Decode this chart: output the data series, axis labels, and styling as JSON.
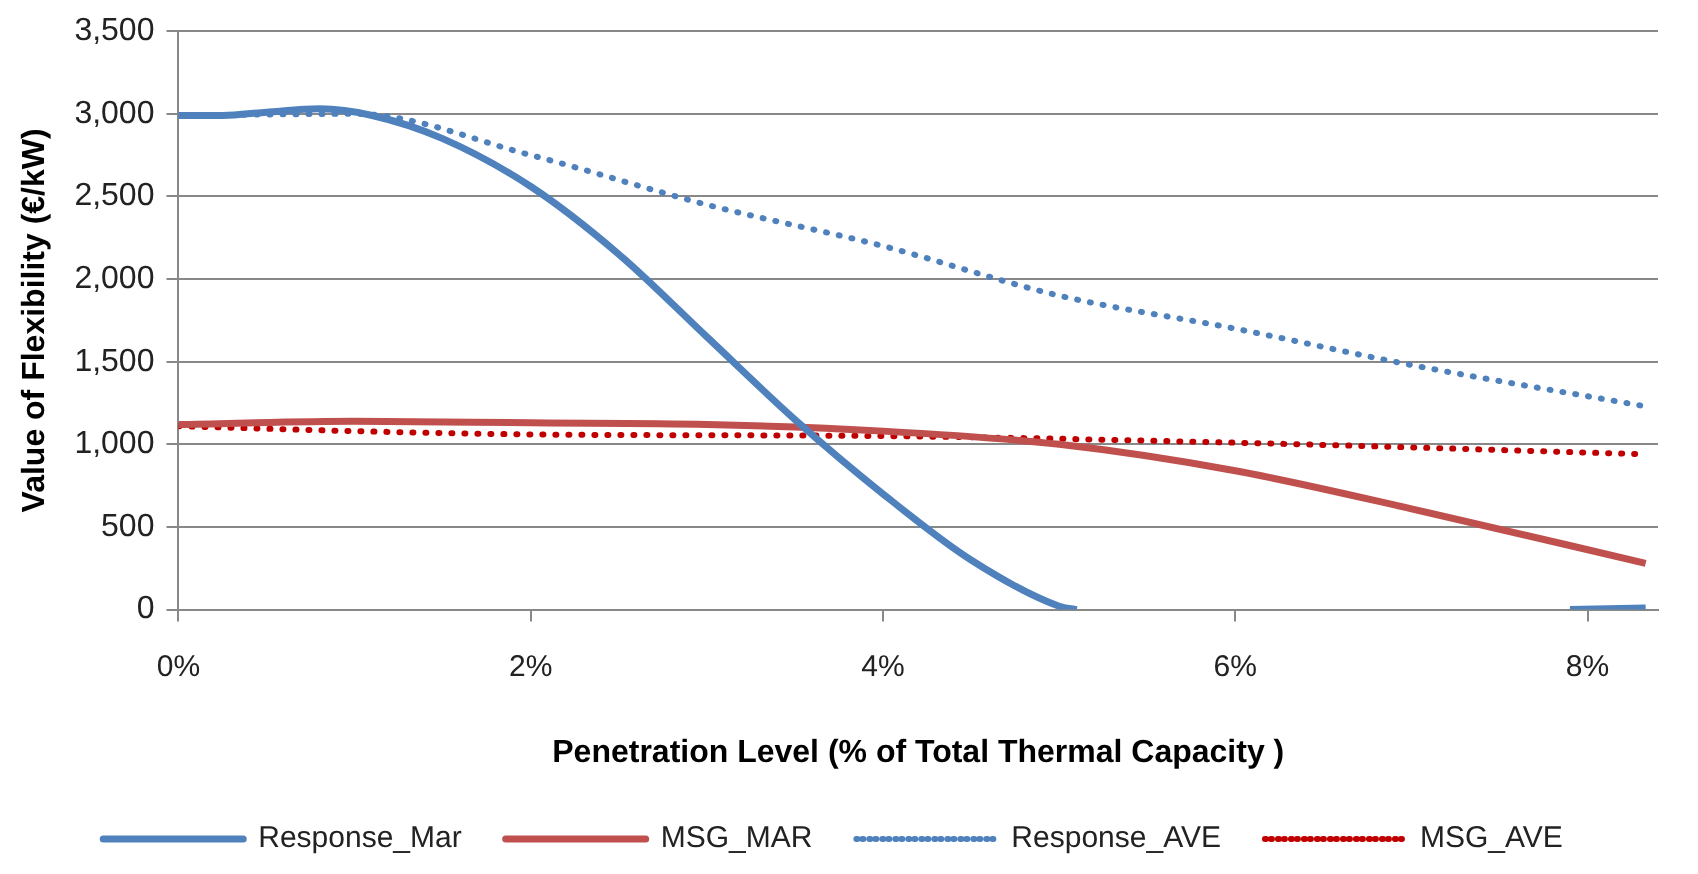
{
  "chart_data": {
    "type": "line",
    "xlabel": "Penetration Level (% of Total Thermal Capacity )",
    "ylabel": "Value of Flexibility (€/kW)",
    "xlim": [
      0,
      8.4
    ],
    "xticks": [
      {
        "value": 0,
        "label": "0%"
      },
      {
        "value": 2,
        "label": "2%"
      },
      {
        "value": 4,
        "label": "4%"
      },
      {
        "value": 6,
        "label": "6%"
      },
      {
        "value": 8,
        "label": "8%"
      }
    ],
    "ylim": [
      0,
      3500
    ],
    "yticks": [
      {
        "value": 0,
        "label": "0"
      },
      {
        "value": 500,
        "label": "500"
      },
      {
        "value": 1000,
        "label": "1,000"
      },
      {
        "value": 1500,
        "label": "1,500"
      },
      {
        "value": 2000,
        "label": "2,000"
      },
      {
        "value": 2500,
        "label": "2,500"
      },
      {
        "value": 3000,
        "label": "3,000"
      },
      {
        "value": 3500,
        "label": "3,500"
      }
    ],
    "grid": "y",
    "legend": "bottom",
    "marker": "none",
    "series": [
      {
        "name": "Response_Mar",
        "color": "#4f81bd",
        "line_style": "solid",
        "x": [
          0,
          0.25,
          0.5,
          0.8,
          1.1,
          1.5,
          2,
          2.5,
          3,
          3.5,
          4,
          4.5,
          5,
          5.1,
          6.5,
          7.9,
          8.33
        ],
        "values": [
          2990,
          2990,
          3010,
          3030,
          2990,
          2850,
          2560,
          2150,
          1650,
          1150,
          700,
          300,
          20,
          0,
          null,
          0,
          10
        ]
      },
      {
        "name": "MSG_MAR",
        "color": "#c0504d",
        "line_style": "solid",
        "x": [
          0,
          1,
          2,
          3,
          4,
          5,
          6,
          7,
          8.33
        ],
        "values": [
          1120,
          1140,
          1130,
          1120,
          1080,
          1000,
          840,
          610,
          280
        ]
      },
      {
        "name": "Response_AVE",
        "color": "#4f81bd",
        "line_style": "dotted",
        "x": [
          0,
          1,
          2,
          3,
          4,
          5,
          6,
          7,
          8.33
        ],
        "values": [
          2990,
          3000,
          2750,
          2450,
          2200,
          1900,
          1700,
          1480,
          1230
        ]
      },
      {
        "name": "MSG_AVE",
        "color": "#c00000",
        "line_style": "dotted",
        "x": [
          0,
          1,
          2,
          4,
          6,
          8.33
        ],
        "values": [
          1110,
          1080,
          1060,
          1050,
          1010,
          940
        ]
      }
    ]
  }
}
